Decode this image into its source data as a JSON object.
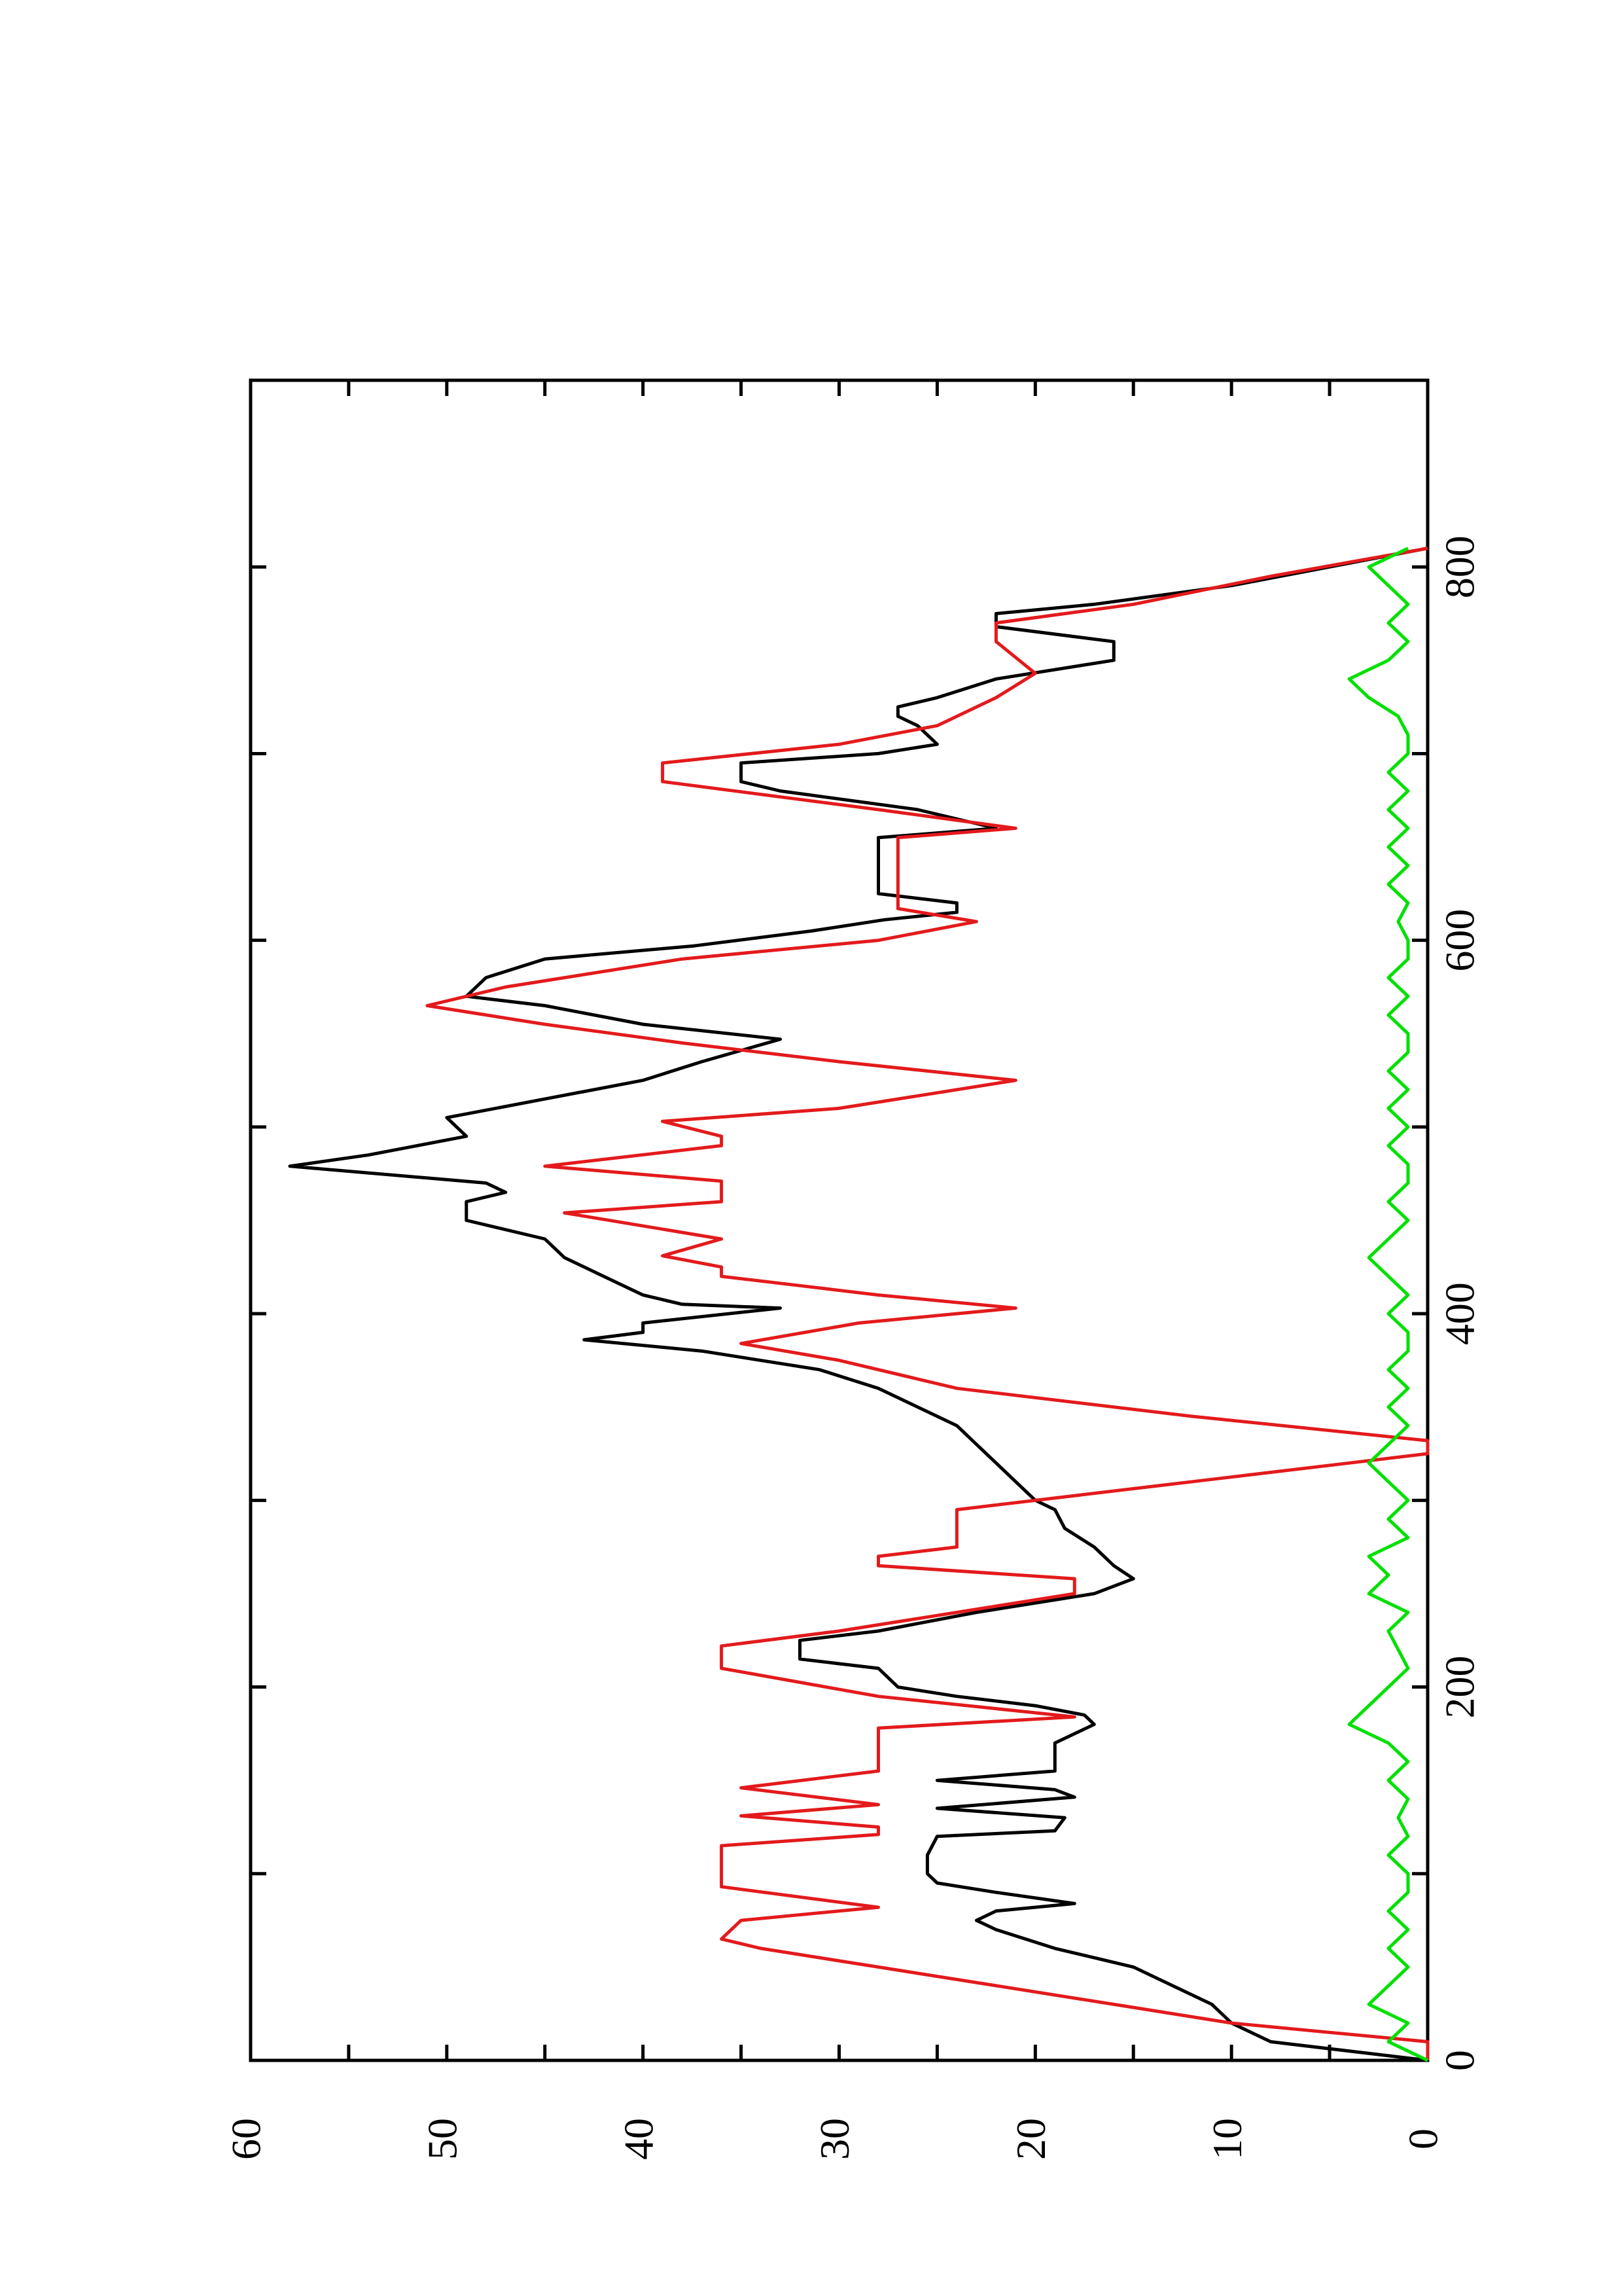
{
  "chart_data": {
    "type": "line",
    "xlim": [
      0,
      900
    ],
    "ylim": [
      0,
      60
    ],
    "xticks": [
      0,
      200,
      400,
      600,
      800
    ],
    "minor_xticks": [
      100,
      300,
      500,
      700
    ],
    "yticks": [
      0,
      10,
      20,
      30,
      40,
      50,
      60
    ],
    "minor_yticks": [
      5,
      15,
      25,
      35,
      45,
      55
    ],
    "series": [
      {
        "color": "#000000",
        "x": [
          0,
          10,
          20,
          30,
          40,
          50,
          60,
          70,
          75,
          80,
          84,
          90,
          95,
          100,
          110,
          120,
          123,
          130,
          135,
          141,
          145,
          150,
          155,
          160,
          170,
          180,
          185,
          190,
          195,
          200,
          210,
          215,
          225,
          230,
          240,
          250,
          258,
          265,
          275,
          285,
          295,
          300,
          310,
          320,
          330,
          340,
          350,
          360,
          370,
          380,
          386,
          390,
          395,
          403,
          405,
          410,
          420,
          430,
          440,
          450,
          460,
          465,
          470,
          479,
          485,
          495,
          505,
          515,
          525,
          535,
          547,
          555,
          565,
          570,
          580,
          590,
          597,
          605,
          611,
          615,
          620,
          625,
          655,
          660,
          670,
          680,
          685,
          695,
          700,
          705,
          715,
          720,
          725,
          730,
          740,
          750,
          760,
          768,
          775,
          780,
          790,
          800,
          810
        ],
        "values": [
          0,
          8,
          10,
          11,
          13,
          15,
          19,
          22,
          23,
          22,
          18,
          22,
          25,
          25.5,
          25.5,
          25,
          19,
          18.5,
          25,
          18,
          19,
          25,
          19,
          19,
          19,
          17,
          17.5,
          20,
          24,
          27,
          28,
          32,
          32,
          28,
          23,
          17,
          15,
          16,
          17,
          18.5,
          19,
          20,
          21,
          22,
          23,
          24,
          26,
          28,
          31,
          37,
          43,
          40,
          40,
          33,
          38,
          40,
          42,
          44,
          45,
          49,
          49,
          47,
          48,
          58,
          54,
          49,
          50,
          45,
          40,
          37,
          33,
          40,
          45,
          49,
          48,
          45,
          37.4,
          31.4,
          27.7,
          24,
          24,
          28,
          28,
          22,
          26,
          33,
          35,
          35,
          28,
          25,
          26,
          27,
          27,
          25,
          22,
          16,
          16,
          22,
          22,
          17,
          10,
          5,
          0
        ]
      },
      {
        "color": "#e31a1c",
        "x": [
          0,
          10,
          20,
          30,
          40,
          50,
          60,
          65,
          75,
          82,
          93,
          115,
          121,
          125,
          131,
          137,
          146,
          155,
          178,
          184,
          195,
          210,
          222,
          230,
          240,
          250,
          258,
          265,
          270,
          275,
          295,
          310,
          325,
          332,
          345,
          360,
          375,
          384,
          395,
          403,
          410,
          415,
          420,
          425,
          431,
          440,
          454,
          460,
          471,
          479,
          490,
          495,
          503,
          510,
          525,
          535,
          545,
          555,
          565,
          575,
          590,
          600,
          610,
          617,
          620,
          655,
          660,
          670,
          685,
          695,
          705,
          715,
          730,
          743,
          760,
          770,
          780,
          795,
          810
        ],
        "values": [
          0,
          0,
          10,
          16,
          22,
          28,
          34,
          36,
          35,
          28,
          36,
          36,
          28,
          28,
          35,
          28,
          35,
          28,
          28,
          18,
          28,
          36,
          36,
          30,
          24,
          18,
          18,
          28,
          28,
          24,
          24,
          12,
          0,
          0,
          12,
          24,
          30,
          35,
          29,
          21,
          28,
          32,
          36,
          36,
          39,
          36,
          44,
          36,
          36,
          45,
          36,
          36,
          39,
          30,
          21,
          30,
          38,
          45,
          51,
          47,
          38,
          28,
          23,
          27,
          27,
          27,
          21,
          28,
          39,
          39,
          30,
          25,
          22,
          20,
          22,
          22,
          15,
          8,
          0
        ]
      },
      {
        "color": "#00e000",
        "x": [
          0,
          10,
          20,
          30,
          40,
          50,
          60,
          70,
          80,
          90,
          100,
          110,
          120,
          130,
          140,
          150,
          160,
          170,
          180,
          190,
          200,
          210,
          220,
          230,
          240,
          250,
          260,
          270,
          280,
          290,
          300,
          310,
          320,
          330,
          340,
          350,
          360,
          370,
          380,
          390,
          400,
          410,
          420,
          430,
          440,
          450,
          460,
          470,
          480,
          490,
          500,
          510,
          520,
          530,
          540,
          550,
          560,
          570,
          580,
          590,
          600,
          610,
          620,
          630,
          640,
          650,
          660,
          670,
          680,
          690,
          700,
          710,
          720,
          730,
          740,
          750,
          760,
          770,
          780,
          790,
          800,
          810
        ],
        "values": [
          0,
          2,
          1,
          3,
          2,
          1,
          2,
          1,
          2,
          1,
          1,
          2,
          1,
          1.5,
          1,
          2,
          1,
          2,
          4,
          3,
          2,
          1,
          1.5,
          2,
          1,
          3,
          2,
          3,
          1,
          2,
          1,
          2,
          3,
          2,
          1,
          2,
          1,
          2,
          1,
          1,
          2,
          1,
          2,
          3,
          2,
          1,
          2,
          1,
          1,
          2,
          1,
          2,
          1,
          2,
          1,
          1,
          2,
          1,
          2,
          1,
          1,
          1.5,
          1,
          2,
          1,
          2,
          1,
          2,
          1,
          2,
          1,
          1,
          1.5,
          3,
          4,
          2,
          1,
          2,
          1,
          2,
          3,
          1
        ]
      }
    ]
  }
}
